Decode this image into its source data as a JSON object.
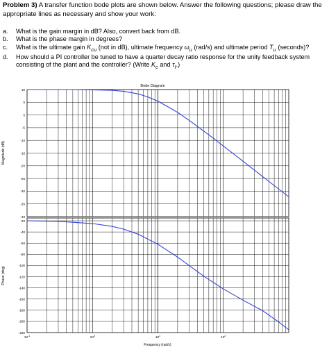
{
  "problem": {
    "heading": "Problem 3)",
    "intro_line1": " A transfer function bode plots are shown below. Answer the following questions; please draw the",
    "intro_line2": "appropriate lines as necessary and show your work:"
  },
  "questions": [
    {
      "letter": "a.",
      "text": "What is the gain margin in dB? Also, convert back from dB."
    },
    {
      "letter": "b.",
      "text": "What is the phase margin in degrees?"
    },
    {
      "letter": "c.",
      "text": "What is the ultimate gain K_cu (not in dB), ultimate frequency ω_u (rad/s) and ultimate period T_u (seconds)?"
    },
    {
      "letter": "d.",
      "text": "How should a PI controller be tuned to have a quarter decay ratio response for the unity feedback system",
      "text2": "consisting of the plant and the controller? (Write K_c and τ_I.)"
    }
  ],
  "chart_data": {
    "type": "line",
    "title": "Bode Diagram",
    "xlabel": "Frequency  (rad/s)",
    "x_scale": "log",
    "xlim": [
      0.1,
      1000
    ],
    "x_ticks": [
      "10^-1",
      "10^0",
      "10^1",
      "10^2"
    ],
    "line_color": "#3340d8",
    "grid": true,
    "magnitude": {
      "ylabel": "Magnitude (dB)",
      "ylim": [
        -40,
        10
      ],
      "y_ticks": [
        10,
        5,
        0,
        -5,
        -10,
        -15,
        -20,
        -25,
        -30,
        -35,
        -40
      ],
      "x": [
        0.1,
        0.2,
        0.5,
        1,
        2,
        3,
        5,
        7,
        10,
        15,
        20,
        30,
        50,
        70,
        100,
        200,
        500,
        1000
      ],
      "y": [
        10,
        10,
        10,
        9.9,
        9.7,
        9.3,
        8.3,
        7.1,
        5.4,
        2.9,
        1.0,
        -2.1,
        -6.3,
        -9.1,
        -12.2,
        -18.2,
        -26.2,
        -32.2
      ]
    },
    "phase": {
      "ylabel": "Phase (deg)",
      "ylim": [
        -220,
        -15
      ],
      "y_ticks": [
        -20,
        -40,
        -60,
        -80,
        -100,
        -120,
        -140,
        -160,
        -180,
        -200,
        -220
      ],
      "x": [
        0.1,
        0.3,
        1,
        2,
        3,
        5,
        10,
        20,
        50,
        100,
        200,
        400,
        700,
        1000
      ],
      "y": [
        -20,
        -21,
        -25,
        -30,
        -35,
        -44,
        -62,
        -85,
        -119,
        -142,
        -162,
        -181,
        -201,
        -215
      ]
    }
  }
}
